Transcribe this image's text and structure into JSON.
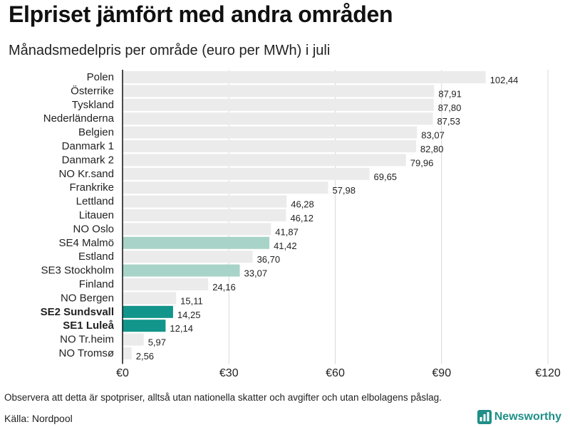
{
  "header": {
    "title": "Elpriset jämfört med andra områden",
    "subtitle": "Månadsmedelpris per område (euro per MWh) i juli"
  },
  "footer": {
    "note": "Observera att detta är spotpriser, alltså utan nationella skatter och avgifter och utan elbolagens påslag.",
    "source": "Källa: Nordpool",
    "brand": "Newsworthy"
  },
  "colors": {
    "default": "#ebebeb",
    "highlight_light": "#a8d3c8",
    "highlight_strong": "#12958a",
    "grid": "#d9d9d9",
    "axis": "#111111",
    "brand": "#1f8f88"
  },
  "chart_data": {
    "type": "bar",
    "orientation": "horizontal",
    "title": "Elpriset jämfört med andra områden",
    "subtitle": "Månadsmedelpris per område (euro per MWh) i juli",
    "xlim": [
      0,
      120
    ],
    "xticks": [
      {
        "value": 0,
        "label": "€0"
      },
      {
        "value": 30,
        "label": "€30"
      },
      {
        "value": 60,
        "label": "€60"
      },
      {
        "value": 90,
        "label": "€90"
      },
      {
        "value": 120,
        "label": "€120"
      }
    ],
    "grid": true,
    "bars": [
      {
        "category": "Polen",
        "value": 102.44,
        "label": "102,44",
        "style": "default",
        "bold": false
      },
      {
        "category": "Österrike",
        "value": 87.91,
        "label": "87,91",
        "style": "default",
        "bold": false
      },
      {
        "category": "Tyskland",
        "value": 87.8,
        "label": "87,80",
        "style": "default",
        "bold": false
      },
      {
        "category": "Nederländerna",
        "value": 87.53,
        "label": "87,53",
        "style": "default",
        "bold": false
      },
      {
        "category": "Belgien",
        "value": 83.07,
        "label": "83,07",
        "style": "default",
        "bold": false
      },
      {
        "category": "Danmark  1",
        "value": 82.8,
        "label": "82,80",
        "style": "default",
        "bold": false
      },
      {
        "category": "Danmark  2",
        "value": 79.96,
        "label": "79,96",
        "style": "default",
        "bold": false
      },
      {
        "category": "NO Kr.sand",
        "value": 69.65,
        "label": "69,65",
        "style": "default",
        "bold": false
      },
      {
        "category": "Frankrike",
        "value": 57.98,
        "label": "57,98",
        "style": "default",
        "bold": false
      },
      {
        "category": "Lettland",
        "value": 46.28,
        "label": "46,28",
        "style": "default",
        "bold": false
      },
      {
        "category": "Litauen",
        "value": 46.12,
        "label": "46,12",
        "style": "default",
        "bold": false
      },
      {
        "category": "NO Oslo",
        "value": 41.87,
        "label": "41,87",
        "style": "default",
        "bold": false
      },
      {
        "category": "SE4  Malmö",
        "value": 41.42,
        "label": "41,42",
        "style": "highlight_light",
        "bold": false
      },
      {
        "category": "Estland",
        "value": 36.7,
        "label": "36,70",
        "style": "default",
        "bold": false
      },
      {
        "category": "SE3  Stockholm",
        "value": 33.07,
        "label": "33,07",
        "style": "highlight_light",
        "bold": false
      },
      {
        "category": "Finland",
        "value": 24.16,
        "label": "24,16",
        "style": "default",
        "bold": false
      },
      {
        "category": "NO Bergen",
        "value": 15.11,
        "label": "15,11",
        "style": "default",
        "bold": false
      },
      {
        "category": "SE2 Sundsvall",
        "value": 14.25,
        "label": "14,25",
        "style": "highlight_strong",
        "bold": true
      },
      {
        "category": "SE1 Luleå",
        "value": 12.14,
        "label": "12,14",
        "style": "highlight_strong",
        "bold": true
      },
      {
        "category": "NO Tr.heim",
        "value": 5.97,
        "label": "5,97",
        "style": "default",
        "bold": false
      },
      {
        "category": "NO Tromsø",
        "value": 2.56,
        "label": "2,56",
        "style": "default",
        "bold": false
      }
    ]
  }
}
